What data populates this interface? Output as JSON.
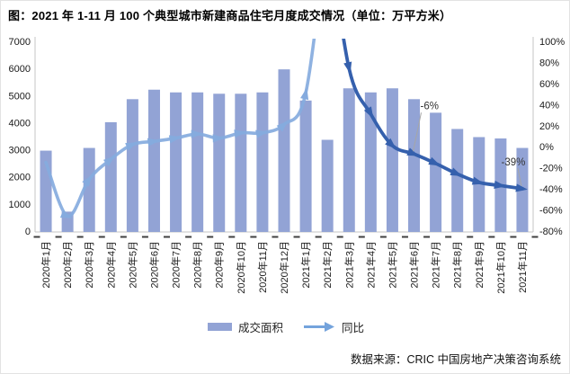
{
  "colors": {
    "bar": "#92A3D5",
    "line_light": "#85ABDE",
    "line_dark": "#3560AD",
    "legend_arrow": "#74A3DC",
    "axis_line": "#c6c6c6",
    "tick_dash": "#404040",
    "callout": "#a6a6a6",
    "text": "#1a1a1a"
  },
  "chart_data": {
    "type": "bar",
    "combo": "bar+line",
    "title": "图：2021 年 1-11 月 100 个典型城市新建商品住宅月度成交情况（单位：万平方米）",
    "source": "数据来源：CRIC 中国房地产决策咨询系统",
    "grid": false,
    "legend_position": "bottom",
    "categories": [
      "2020年1月",
      "2020年2月",
      "2020年3月",
      "2020年4月",
      "2020年5月",
      "2020年6月",
      "2020年7月",
      "2020年8月",
      "2020年9月",
      "2020年10月",
      "2020年11月",
      "2020年12月",
      "2021年1月",
      "2021年2月",
      "2021年3月",
      "2021年4月",
      "2021年5月",
      "2021年6月",
      "2021年7月",
      "2021年8月",
      "2021年9月",
      "2021年10月",
      "2021年11月"
    ],
    "series": [
      {
        "name": "成交面积",
        "type": "bar",
        "axis": "left",
        "unit": "万平方米",
        "values": [
          3000,
          750,
          3100,
          4050,
          4900,
          5250,
          5150,
          5150,
          5100,
          5100,
          5150,
          6000,
          4850,
          3400,
          5300,
          5150,
          5300,
          4900,
          4400,
          3800,
          3500,
          3450,
          3100
        ]
      },
      {
        "name": "同比",
        "type": "line",
        "axis": "right",
        "unit": "%",
        "values": [
          -14,
          -65,
          -30,
          -11,
          3,
          6,
          9,
          13,
          9,
          14,
          14,
          22,
          52,
          null,
          75,
          32,
          2,
          -6,
          -15,
          -25,
          -33,
          -36,
          -39
        ],
        "offscale_note": "2021年2月 同比超过 +100%，曲线冲出图表顶部"
      }
    ],
    "left_axis": {
      "min": 0,
      "max": 7000,
      "step": 1000
    },
    "right_axis": {
      "min": -80,
      "max": 100,
      "step": 20,
      "unit": "%"
    },
    "annotations": [
      {
        "text": "-6%",
        "category": "2021年6月"
      },
      {
        "text": "-39%",
        "category": "2021年11月"
      }
    ],
    "legend": {
      "bar_label": "成交面积",
      "line_label": "同比"
    }
  }
}
